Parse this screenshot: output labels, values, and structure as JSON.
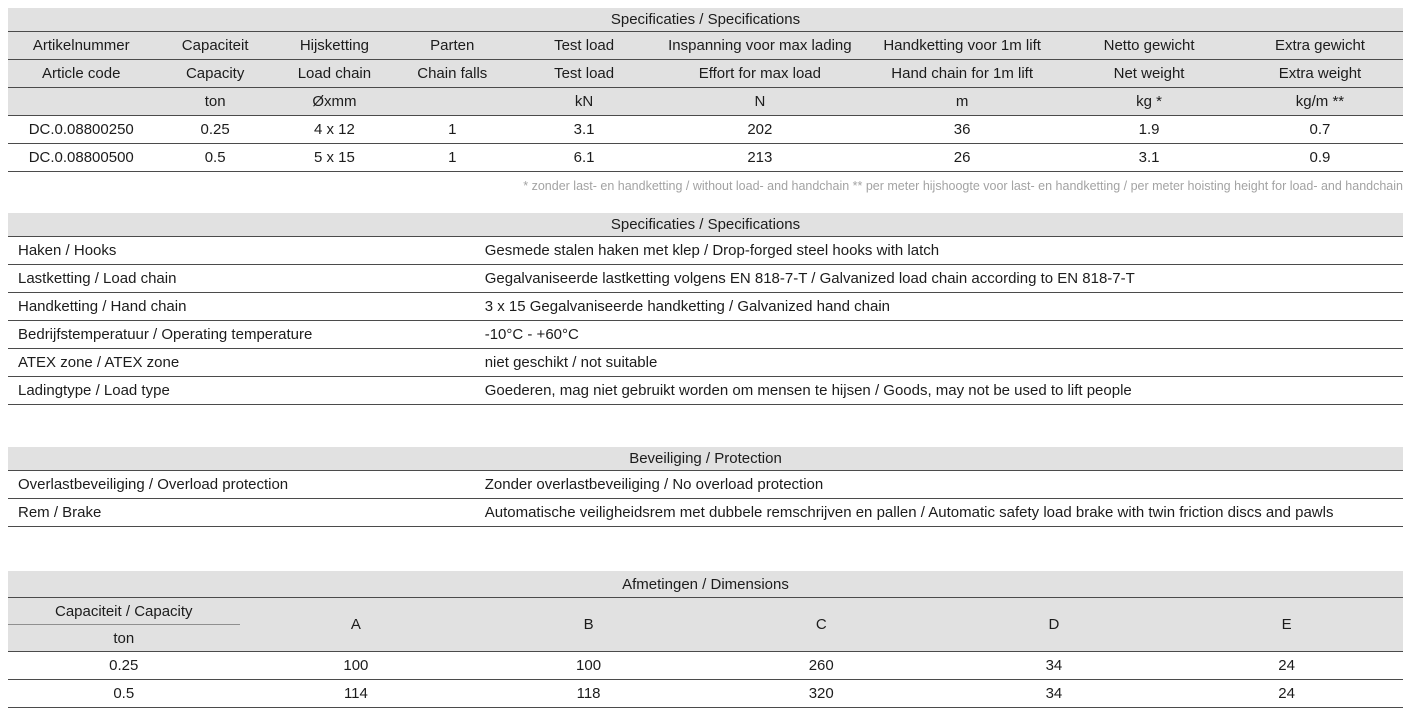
{
  "colors": {
    "header_bg": "#e1e1e1",
    "border": "#4b4b4b",
    "text": "#1c1c1c",
    "footnote_text": "#a3a3a3"
  },
  "spec_table": {
    "title": "Specificaties / Specifications",
    "columns": [
      {
        "nl": "Artikelnummer",
        "en": "Article code",
        "unit": ""
      },
      {
        "nl": "Capaciteit",
        "en": "Capacity",
        "unit": "ton"
      },
      {
        "nl": "Hijsketting",
        "en": "Load chain",
        "unit": "Øxmm"
      },
      {
        "nl": "Parten",
        "en": "Chain falls",
        "unit": ""
      },
      {
        "nl": "Test load",
        "en": "Test load",
        "unit": "kN"
      },
      {
        "nl": "Inspanning voor max lading",
        "en": "Effort for max load",
        "unit": "N"
      },
      {
        "nl": "Handketting voor 1m lift",
        "en": "Hand chain for 1m lift",
        "unit": "m"
      },
      {
        "nl": "Netto gewicht",
        "en": "Net weight",
        "unit": "kg *"
      },
      {
        "nl": "Extra gewicht",
        "en": "Extra weight",
        "unit": "kg/m **"
      }
    ],
    "rows": [
      [
        "DC.0.08800250",
        "0.25",
        "4 x 12",
        "1",
        "3.1",
        "202",
        "36",
        "1.9",
        "0.7"
      ],
      [
        "DC.0.08800500",
        "0.5",
        "5 x 15",
        "1",
        "6.1",
        "213",
        "26",
        "3.1",
        "0.9"
      ]
    ],
    "footnote": "* zonder last- en handketting / without load- and handchain ** per meter hijshoogte voor last- en handketting / per meter hoisting height for load- and handchain"
  },
  "details_table": {
    "title": "Specificaties / Specifications",
    "rows": [
      {
        "label": "Haken / Hooks",
        "value": "Gesmede stalen haken met klep / Drop-forged steel hooks with latch"
      },
      {
        "label": "Lastketting / Load chain",
        "value": "Gegalvaniseerde lastketting volgens EN 818-7-T / Galvanized load chain according to EN 818-7-T"
      },
      {
        "label": "Handketting / Hand chain",
        "value": "3 x 15 Gegalvaniseerde handketting / Galvanized hand chain"
      },
      {
        "label": "Bedrijfstemperatuur / Operating temperature",
        "value": "-10°C  -  +60°C"
      },
      {
        "label": "ATEX zone / ATEX zone",
        "value": "niet geschikt / not suitable"
      },
      {
        "label": "Ladingtype / Load type",
        "value": "Goederen, mag niet gebruikt worden om mensen te hijsen / Goods, may not be used to lift people"
      }
    ]
  },
  "protection_table": {
    "title": "Beveiliging / Protection",
    "rows": [
      {
        "label": "Overlastbeveiliging / Overload protection",
        "value": "Zonder overlastbeveiliging / No overload protection"
      },
      {
        "label": "Rem / Brake",
        "value": "Automatische veiligheidsrem met dubbele remschrijven en pallen / Automatic safety load brake with twin friction discs and pawls"
      }
    ]
  },
  "dimensions_table": {
    "title": "Afmetingen / Dimensions",
    "capacity_header": "Capaciteit / Capacity",
    "capacity_unit": "ton",
    "columns": [
      "A",
      "B",
      "C",
      "D",
      "E"
    ],
    "rows": [
      {
        "capacity": "0.25",
        "values": [
          "100",
          "100",
          "260",
          "34",
          "24"
        ]
      },
      {
        "capacity": "0.5",
        "values": [
          "114",
          "118",
          "320",
          "34",
          "24"
        ]
      }
    ]
  }
}
